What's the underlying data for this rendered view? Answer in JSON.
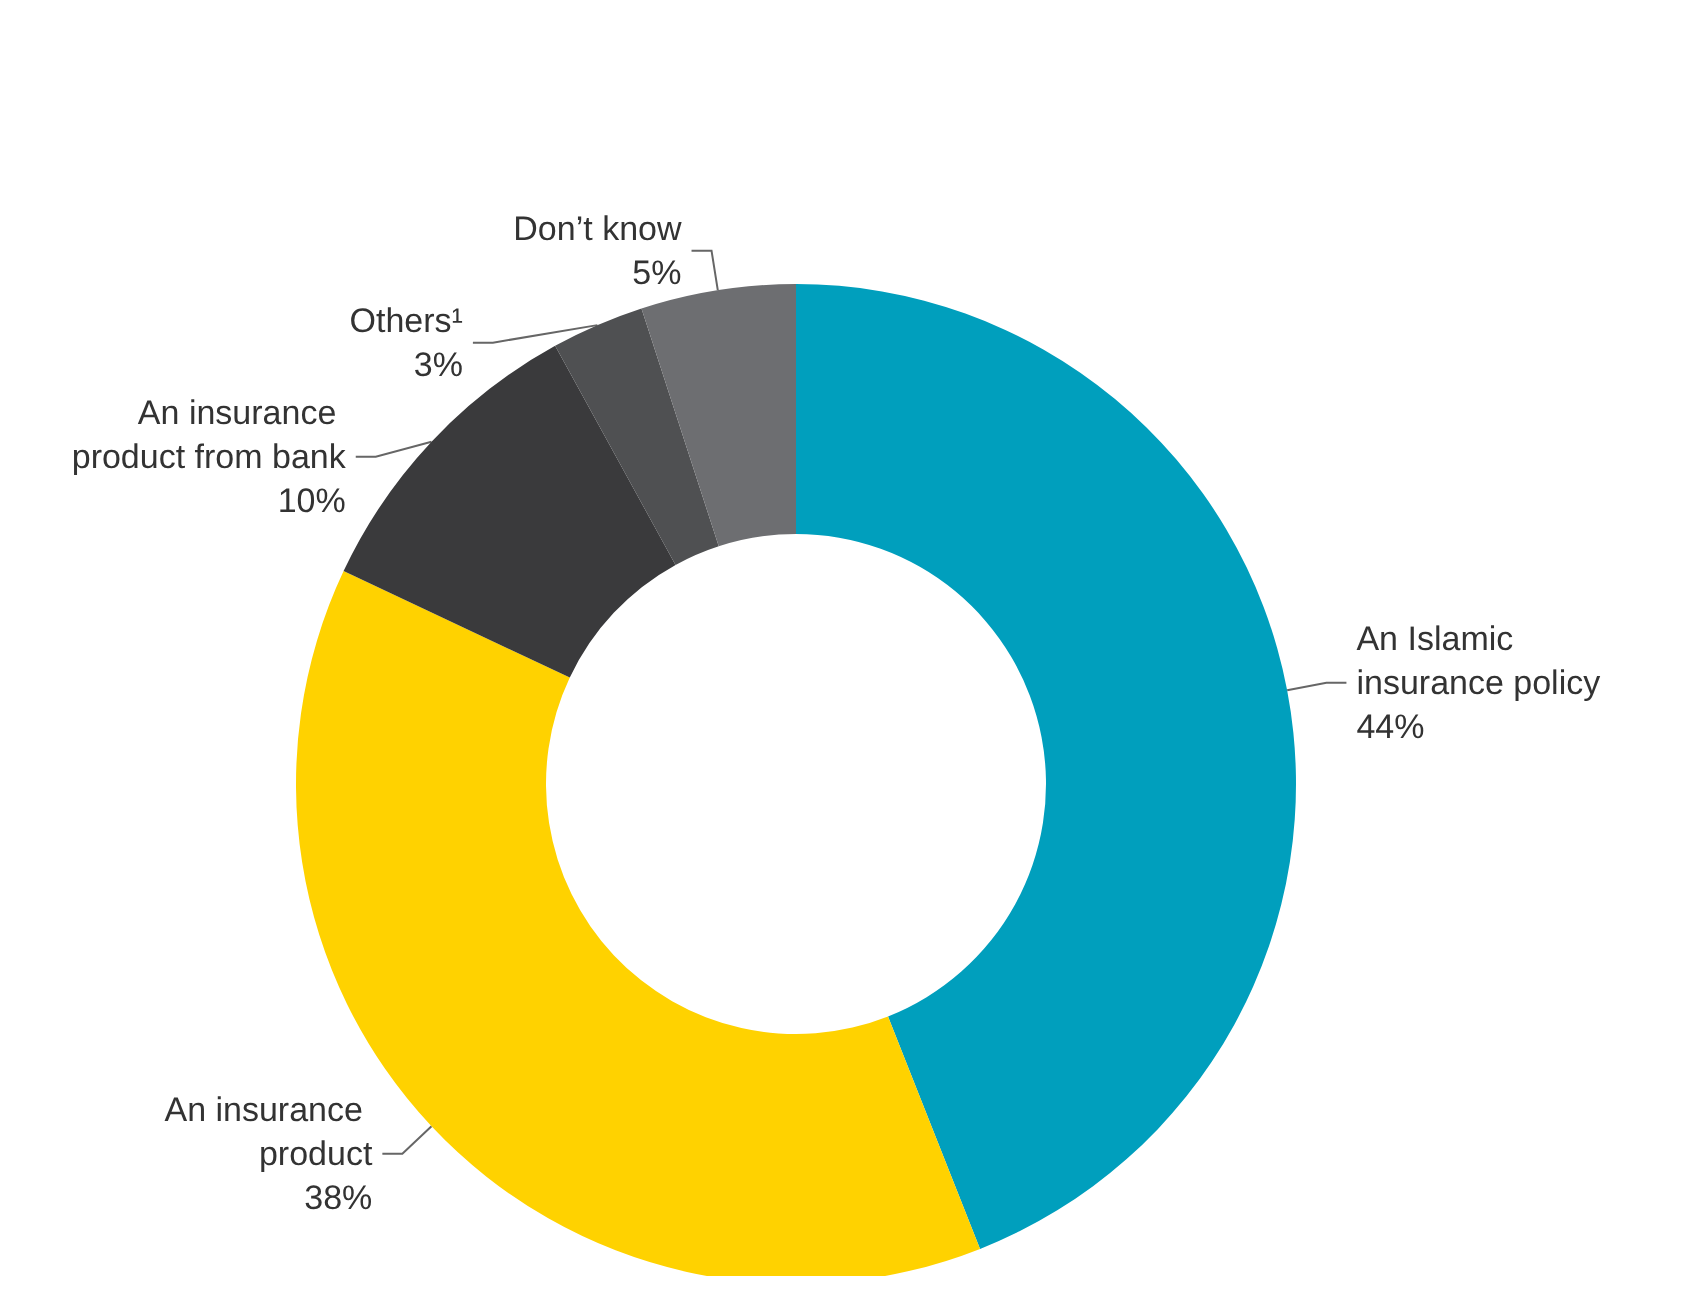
{
  "chart_data": {
    "type": "donut",
    "categories": [
      "An Islamic insurance policy",
      "An insurance product",
      "An insurance product from bank",
      "Others¹",
      "Don’t know"
    ],
    "values": [
      44,
      38,
      10,
      3,
      5
    ],
    "value_labels": [
      "44%",
      "38%",
      "10%",
      "3%",
      "5%"
    ],
    "colors": [
      "#009fbd",
      "#ffd200",
      "#3a3a3c",
      "#4f5052",
      "#6d6e71"
    ],
    "legend": false
  }
}
